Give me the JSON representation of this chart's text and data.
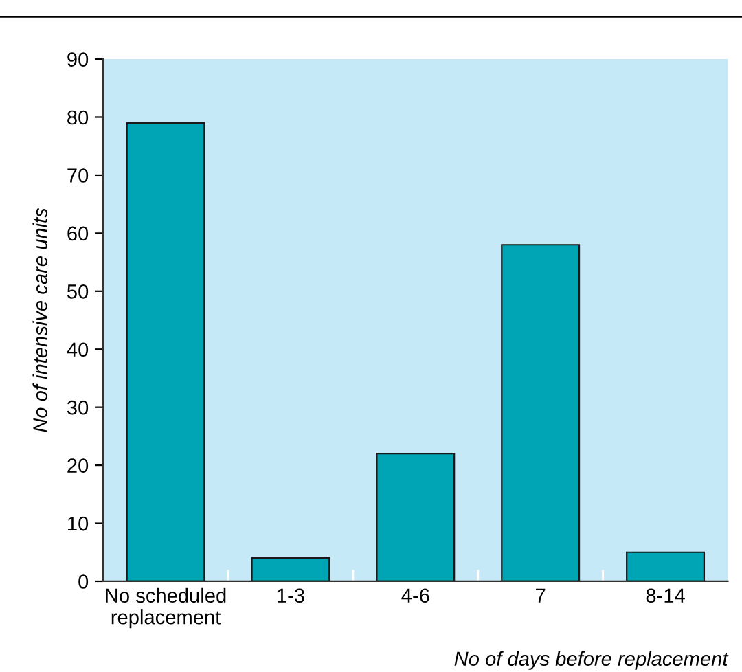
{
  "chart_data": {
    "type": "bar",
    "xlabel": "No of days before replacement",
    "ylabel": "No of intensive care units",
    "categories": [
      "No scheduled\nreplacement",
      "1-3",
      "4-6",
      "7",
      "8-14"
    ],
    "values": [
      79,
      4,
      22,
      58,
      5
    ],
    "color": "#00a5b5",
    "ylim": [
      0,
      90
    ],
    "yticks": [
      0,
      10,
      20,
      30,
      40,
      50,
      60,
      70,
      80,
      90
    ],
    "grid": false
  }
}
